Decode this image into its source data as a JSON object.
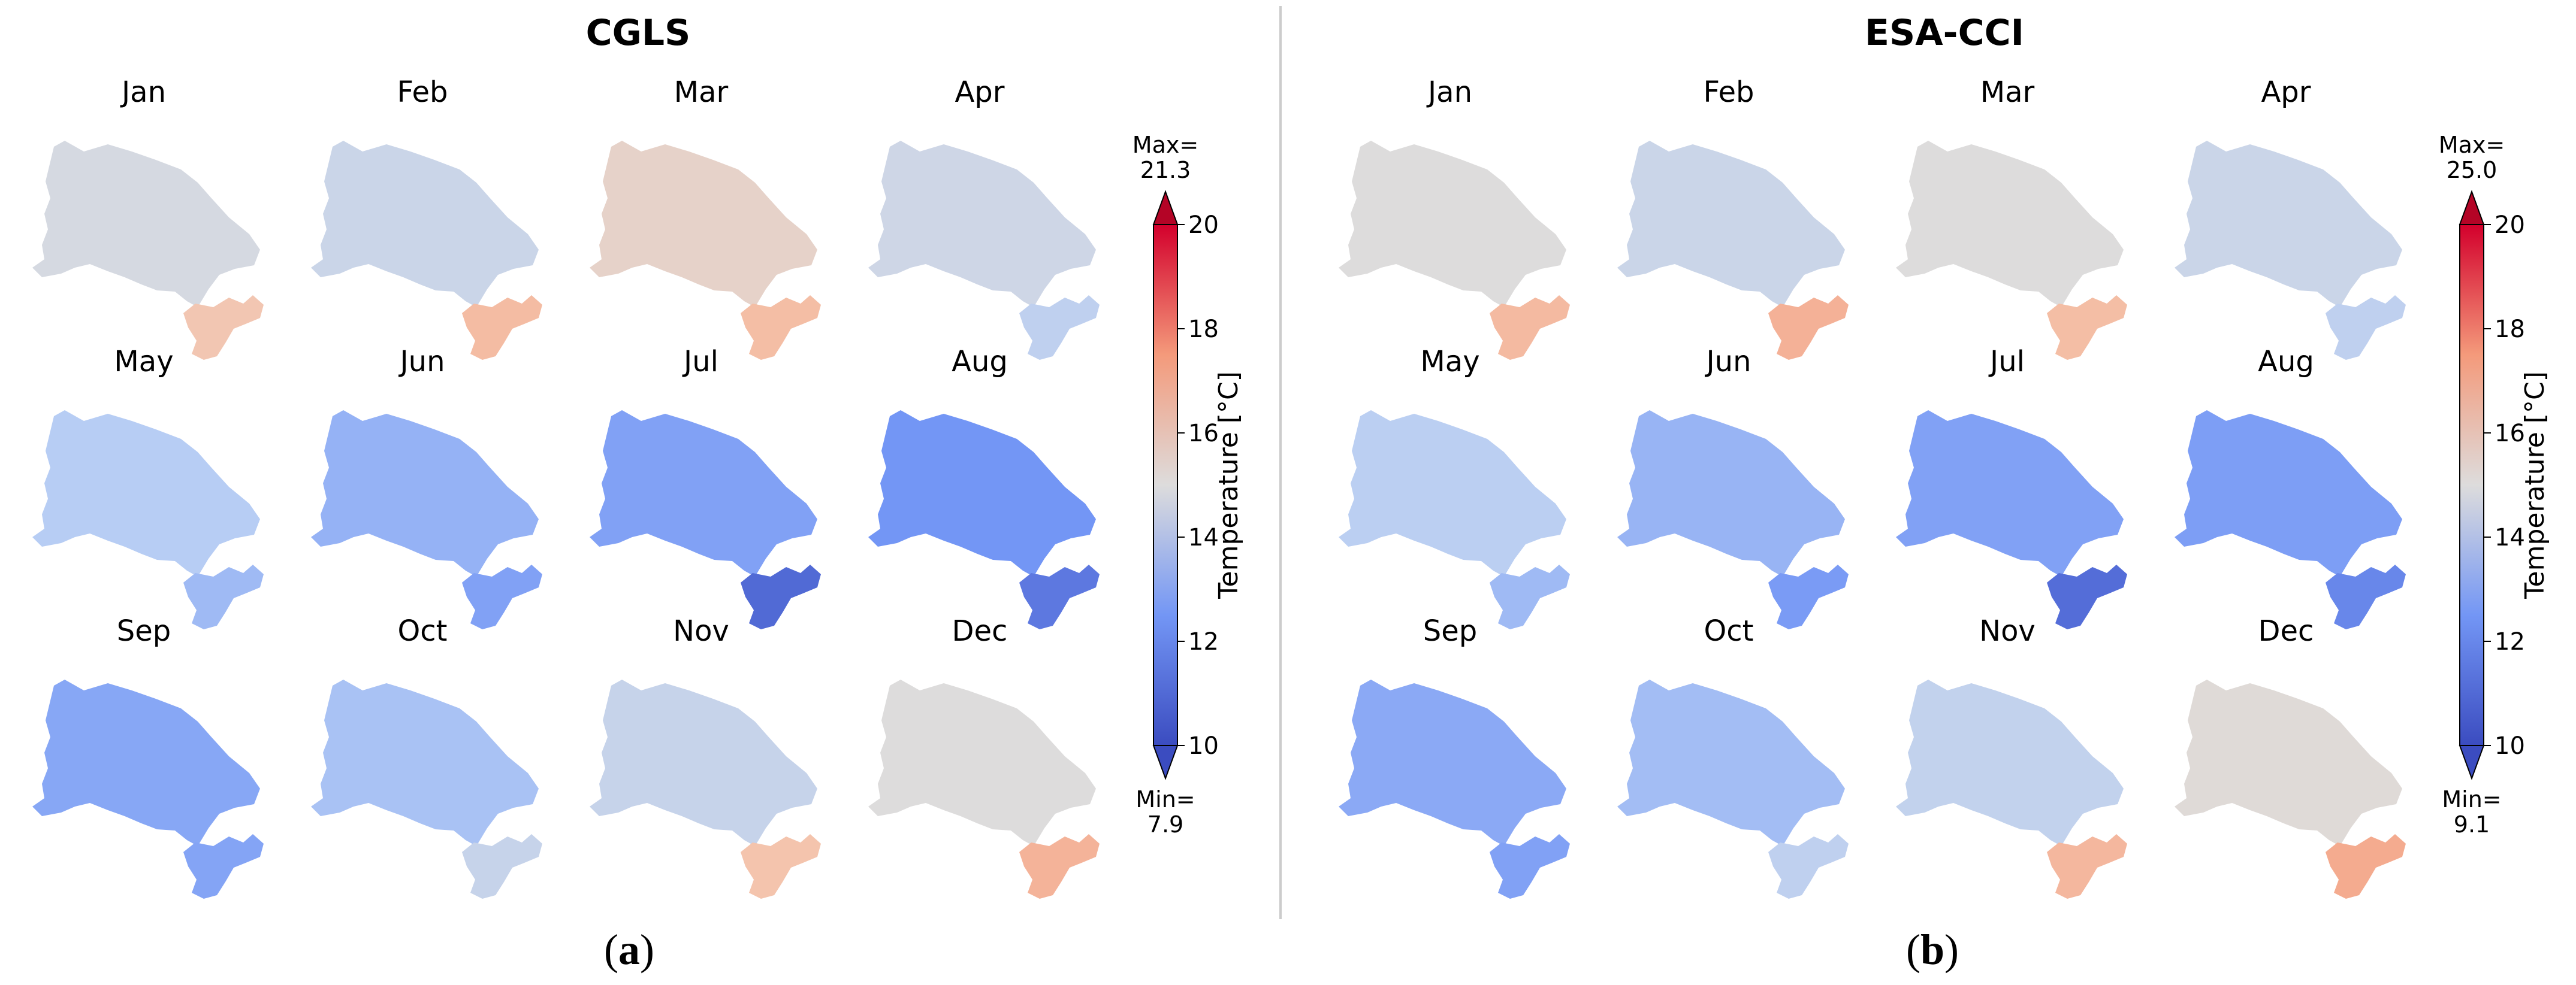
{
  "chart_data": [
    {
      "type": "heatmap",
      "title": "CGLS",
      "caption_letter": "a",
      "months": [
        {
          "label": "Jan",
          "mean": 14.8,
          "lobe": 15.9
        },
        {
          "label": "Feb",
          "mean": 14.5,
          "lobe": 16.4
        },
        {
          "label": "Mar",
          "mean": 15.4,
          "lobe": 16.3
        },
        {
          "label": "Apr",
          "mean": 14.6,
          "lobe": 14.2
        },
        {
          "label": "May",
          "mean": 14.0,
          "lobe": 13.3
        },
        {
          "label": "Jun",
          "mean": 13.0,
          "lobe": 12.4
        },
        {
          "label": "Jul",
          "mean": 12.4,
          "lobe": 10.8
        },
        {
          "label": "Aug",
          "mean": 12.0,
          "lobe": 11.2
        },
        {
          "label": "Sep",
          "mean": 12.6,
          "lobe": 12.5
        },
        {
          "label": "Oct",
          "mean": 13.6,
          "lobe": 14.4
        },
        {
          "label": "Nov",
          "mean": 14.4,
          "lobe": 16.0
        },
        {
          "label": "Dec",
          "mean": 15.0,
          "lobe": 16.8
        }
      ],
      "colorbar": {
        "label": "Temperature  [°C]",
        "range": [
          10,
          20
        ],
        "ticks": [
          "10",
          "12",
          "14",
          "16",
          "18",
          "20"
        ],
        "max_label": "Max=",
        "max_value": "21.3",
        "min_label": "Min=",
        "min_value": "7.9"
      }
    },
    {
      "type": "heatmap",
      "title": "ESA-CCI",
      "caption_letter": "b",
      "months": [
        {
          "label": "Jan",
          "mean": 15.0,
          "lobe": 16.5
        },
        {
          "label": "Feb",
          "mean": 14.5,
          "lobe": 16.9
        },
        {
          "label": "Mar",
          "mean": 15.0,
          "lobe": 16.3
        },
        {
          "label": "Apr",
          "mean": 14.5,
          "lobe": 14.2
        },
        {
          "label": "May",
          "mean": 14.1,
          "lobe": 13.3
        },
        {
          "label": "Jun",
          "mean": 13.1,
          "lobe": 12.2
        },
        {
          "label": "Jul",
          "mean": 12.4,
          "lobe": 10.9
        },
        {
          "label": "Aug",
          "mean": 12.3,
          "lobe": 11.6
        },
        {
          "label": "Sep",
          "mean": 12.7,
          "lobe": 12.4
        },
        {
          "label": "Oct",
          "mean": 13.4,
          "lobe": 14.2
        },
        {
          "label": "Nov",
          "mean": 14.3,
          "lobe": 16.6
        },
        {
          "label": "Dec",
          "mean": 15.1,
          "lobe": 17.2
        }
      ],
      "colorbar": {
        "label": "Temperature  [°C]",
        "range": [
          10,
          20
        ],
        "ticks": [
          "10",
          "12",
          "14",
          "16",
          "18",
          "20"
        ],
        "max_label": "Max=",
        "max_value": "25.0",
        "min_label": "Min=",
        "min_value": "9.1"
      }
    }
  ]
}
